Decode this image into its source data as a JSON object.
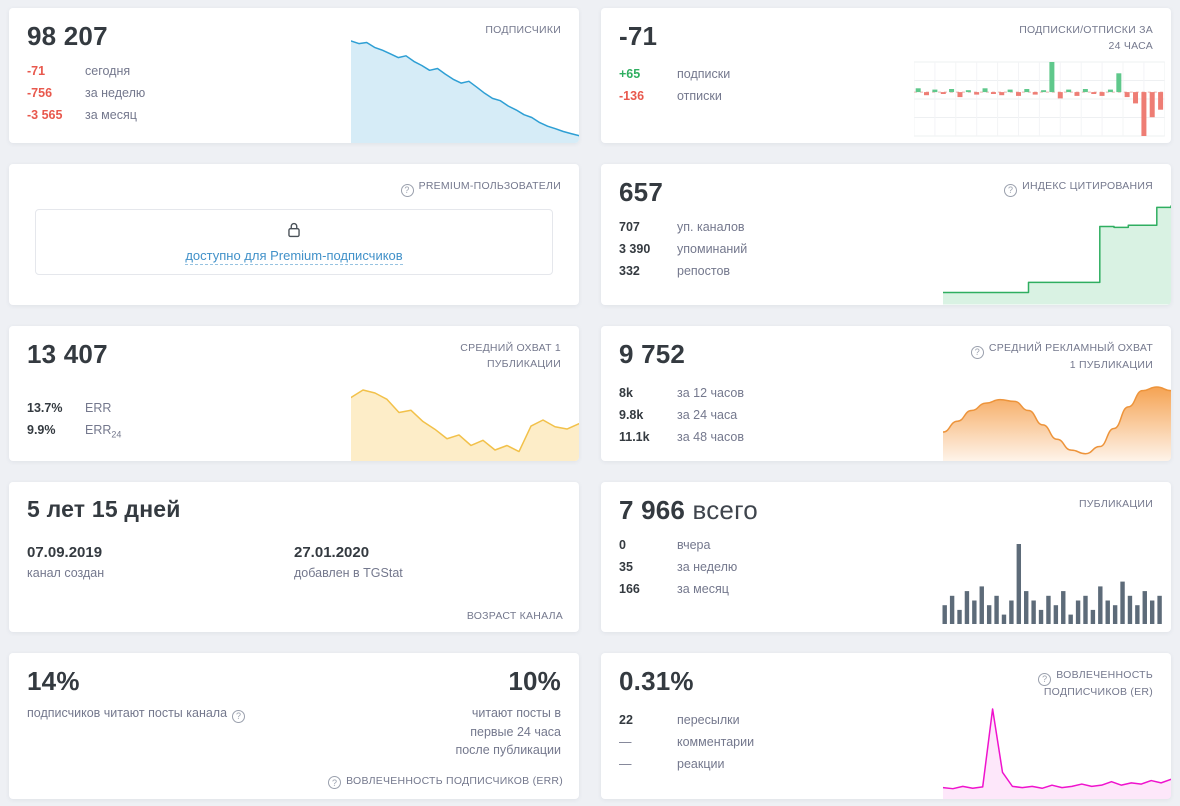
{
  "colors": {
    "red": "#e8584d",
    "green": "#2fae60",
    "link": "#4191c9",
    "text_dark": "#343a40",
    "text_grey": "#74788d",
    "page_bg": "#eef0f4"
  },
  "cards": {
    "subscribers": {
      "title": "ПОДПИСЧИКИ",
      "value": "98 207",
      "stats": [
        {
          "value": "-71",
          "label": "сегодня"
        },
        {
          "value": "-756",
          "label": "за неделю"
        },
        {
          "value": "-3 565",
          "label": "за месяц"
        }
      ],
      "chart": {
        "type": "area",
        "color": "#2e9fd4",
        "fill": "#d6ecf7",
        "stroke_width": 1.5,
        "min": 98150,
        "values": [
          98950,
          98930,
          98938,
          98900,
          98878,
          98850,
          98820,
          98834,
          98790,
          98758,
          98720,
          98734,
          98690,
          98650,
          98620,
          98634,
          98588,
          98540,
          98500,
          98482,
          98440,
          98410,
          98372,
          98350,
          98310,
          98282,
          98262,
          98240,
          98224,
          98207
        ]
      }
    },
    "subs_24h": {
      "title": "ПОДПИСКИ/ОТПИСКИ ЗА 24 ЧАСА",
      "value": "-71",
      "stats": [
        {
          "value": "+65",
          "label": "подписки"
        },
        {
          "value": "-136",
          "label": "отписки"
        }
      ],
      "chart": {
        "type": "bar",
        "grid": true,
        "zero_dash": true,
        "zero_color": "#e9b4ae",
        "pos_color": "#5fc88b",
        "neg_color": "#ee7d74",
        "values": [
          6,
          -5,
          4,
          -3,
          5,
          -8,
          3,
          -4,
          6,
          -3,
          -5,
          4,
          -6,
          5,
          -4,
          3,
          48,
          -10,
          4,
          -6,
          5,
          -3,
          -6,
          4,
          30,
          -8,
          -18,
          -70,
          -40,
          -28
        ]
      }
    },
    "premium": {
      "title": "PREMIUM-ПОЛЬЗОВАТЕЛИ",
      "link_label": "доступно для Premium-подписчиков"
    },
    "citation": {
      "title": "ИНДЕКС ЦИТИРОВАНИЯ",
      "value": "657",
      "stats": [
        {
          "value": "707",
          "label": "уп. каналов"
        },
        {
          "value": "3 390",
          "label": "упоминаний"
        },
        {
          "value": "332",
          "label": "репостов"
        }
      ],
      "chart": {
        "type": "area",
        "step": true,
        "color": "#2fae60",
        "fill": "#d9f2e3",
        "stroke_width": 1.5,
        "min": 0,
        "values": [
          80,
          80,
          80,
          80,
          80,
          80,
          148,
          148,
          148,
          148,
          148,
          520,
          514,
          528,
          528,
          648,
          657
        ]
      }
    },
    "avg_reach": {
      "title": "СРЕДНИЙ ОХВАТ 1 ПУБЛИКАЦИИ",
      "value": "13 407",
      "stats": [
        {
          "value": "13.7%",
          "label": "ERR"
        },
        {
          "value": "9.9%",
          "label": "ERR",
          "label_sub": "24"
        }
      ],
      "chart": {
        "type": "area",
        "color": "#f2c14a",
        "fill": "#fdedc8",
        "stroke_width": 1.5,
        "min": 12200,
        "values": [
          13900,
          14100,
          14020,
          13850,
          13500,
          13560,
          13260,
          13050,
          12800,
          12900,
          12620,
          12760,
          12500,
          12620,
          12460,
          13140,
          13300,
          13120,
          13060,
          13200
        ]
      }
    },
    "ad_reach": {
      "title": "СРЕДНИЙ РЕКЛАМНЫЙ ОХВАТ 1 ПУБЛИКАЦИИ",
      "value": "9 752",
      "stats": [
        {
          "value": "8k",
          "label": "за 12 часов"
        },
        {
          "value": "9.8k",
          "label": "за 24 часа"
        },
        {
          "value": "11.1k",
          "label": "за 48 часов"
        }
      ],
      "chart": {
        "type": "area",
        "smooth": true,
        "color": "#ed943b",
        "stroke_width": 1.5,
        "min": 7000,
        "gradient": [
          "rgba(245,158,74,0.95)",
          "rgba(245,158,74,0.12)"
        ],
        "values": [
          8600,
          9200,
          9800,
          10200,
          10400,
          10300,
          9800,
          9000,
          8200,
          7600,
          7400,
          7800,
          8800,
          10000,
          10900,
          11100,
          10900
        ]
      }
    },
    "age": {
      "value": "5 лет 15 дней",
      "created_value": "07.09.2019",
      "created_label": "канал создан",
      "added_value": "27.01.2020",
      "added_label": "добавлен в TGStat",
      "title": "ВОЗРАСТ КАНАЛА"
    },
    "publications": {
      "title": "ПУБЛИКАЦИИ",
      "value": "7 966",
      "value_suffix": "всего",
      "stats": [
        {
          "value": "0",
          "label": "вчера"
        },
        {
          "value": "35",
          "label": "за неделю"
        },
        {
          "value": "166",
          "label": "за месяц"
        }
      ],
      "chart": {
        "type": "bar",
        "color": "#5d6b79",
        "values": [
          4,
          6,
          3,
          7,
          5,
          8,
          4,
          6,
          2,
          5,
          17,
          7,
          5,
          3,
          6,
          4,
          7,
          2,
          5,
          6,
          3,
          8,
          5,
          4,
          9,
          6,
          4,
          7,
          5,
          6
        ]
      }
    },
    "err": {
      "title": "ВОВЛЕЧЕННОСТЬ ПОДПИСЧИКОВ (ERR)",
      "left_value": "14%",
      "left_label": "подписчиков читают посты канала",
      "right_value": "10%",
      "right_label": "читают посты в первые 24 часа после публикации"
    },
    "er": {
      "title": "ВОВЛЕЧЕННОСТЬ ПОДПИСЧИКОВ (ER)",
      "value": "0.31%",
      "stats": [
        {
          "value": "22",
          "label": "пересылки"
        },
        {
          "value": "—",
          "label": "комментарии"
        },
        {
          "value": "—",
          "label": "реакции"
        }
      ],
      "chart": {
        "type": "area",
        "color": "#ef13cd",
        "fill": "rgba(239,19,205,0.10)",
        "stroke_width": 1.5,
        "min": 0,
        "pad_bottom": 6,
        "values": [
          0.25,
          0.2,
          0.3,
          0.22,
          0.28,
          3.6,
          0.9,
          0.3,
          0.25,
          0.3,
          0.22,
          0.35,
          0.25,
          0.3,
          0.4,
          0.3,
          0.35,
          0.5,
          0.35,
          0.45,
          0.4,
          0.55,
          0.45,
          0.6
        ]
      }
    }
  }
}
